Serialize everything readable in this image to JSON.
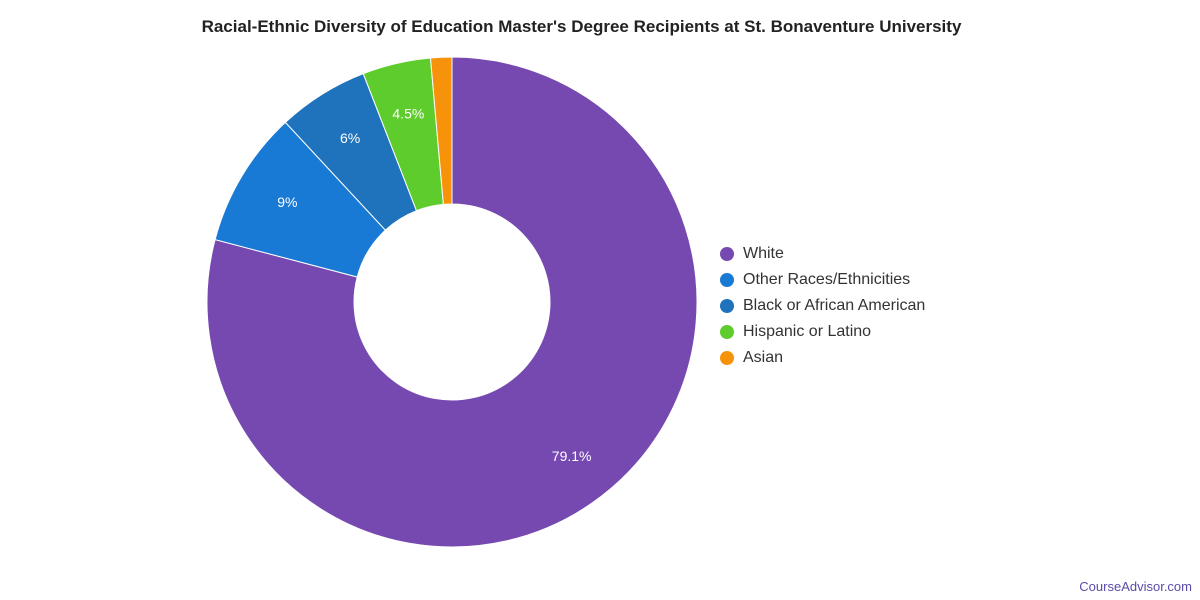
{
  "chart_data": {
    "type": "pie",
    "title": "Racial-Ethnic Diversity of Education Master's Degree Recipients at St. Bonaventure University",
    "donut": true,
    "legend_placement": "right",
    "categories": [
      "White",
      "Other Races/Ethnicities",
      "Black or African American",
      "Hispanic or Latino",
      "Asian"
    ],
    "values": [
      79.1,
      9,
      6,
      4.5,
      1.4
    ],
    "data_labels": [
      "79.1%",
      "9%",
      "6%",
      "4.5%",
      ""
    ],
    "colors": [
      "#7549b0",
      "#197ad6",
      "#1f72bc",
      "#5fcc2e",
      "#f7930a"
    ]
  },
  "footer": {
    "credit": "CourseAdvisor.com"
  }
}
